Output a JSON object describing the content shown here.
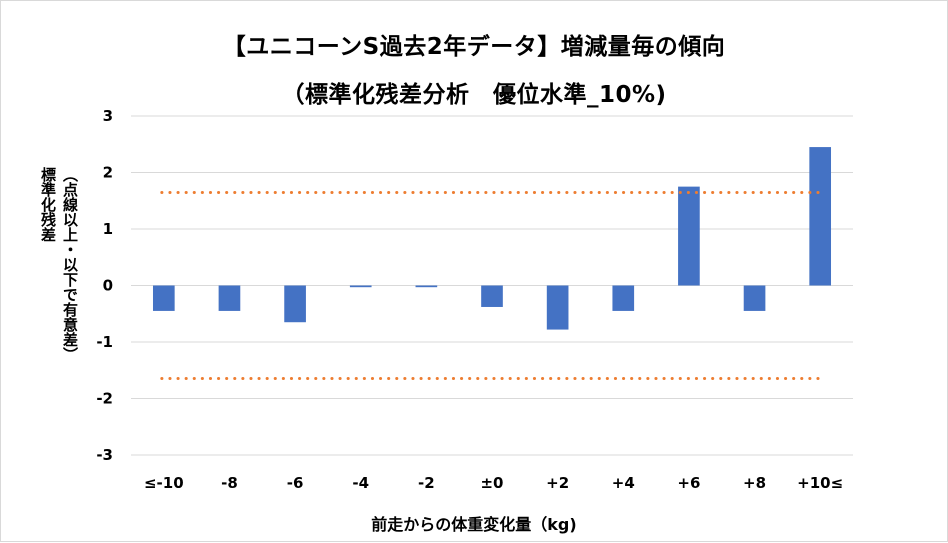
{
  "chart_data": {
    "type": "bar",
    "title": "【ユニコーンS過去2年データ】増減量毎の傾向",
    "subtitle": "（標準化残差分析　優位水準_10%)",
    "xlabel": "前走からの体重変化量（kg)",
    "ylabel_main": "標準化残差",
    "ylabel_note": "（点線以上・以下で有意差）",
    "categories": [
      "≤-10",
      "-8",
      "-6",
      "-4",
      "-2",
      "±0",
      "+2",
      "+4",
      "+6",
      "+8",
      "+10≤"
    ],
    "values": [
      -0.45,
      -0.45,
      -0.65,
      -0.03,
      -0.03,
      -0.38,
      -0.78,
      -0.45,
      1.75,
      -0.45,
      2.45
    ],
    "ylim": [
      -3,
      3
    ],
    "yticks": [
      3,
      2,
      1,
      0,
      -1,
      -2,
      -3
    ],
    "threshold_lines": [
      1.645,
      -1.645
    ],
    "bar_color": "#4472c4",
    "threshold_color": "#ed7d31",
    "grid": true
  }
}
